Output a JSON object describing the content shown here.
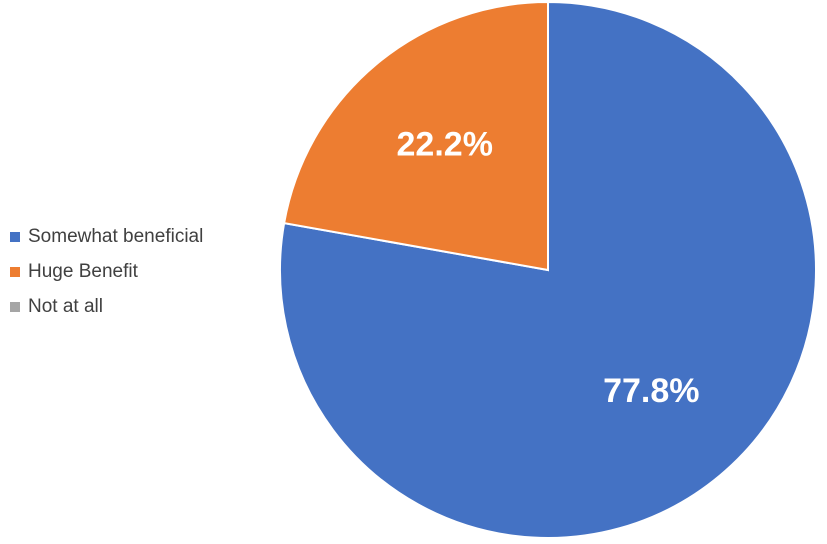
{
  "chart_data": {
    "type": "pie",
    "categories": [
      "Somewhat beneficial",
      "Huge Benefit",
      "Not at all"
    ],
    "values": [
      77.8,
      22.2,
      0
    ],
    "value_labels": [
      "77.8%",
      "22.2%",
      null
    ],
    "colors": [
      "#4472c4",
      "#ed7d31",
      "#a5a5a5"
    ],
    "legend": "left"
  }
}
